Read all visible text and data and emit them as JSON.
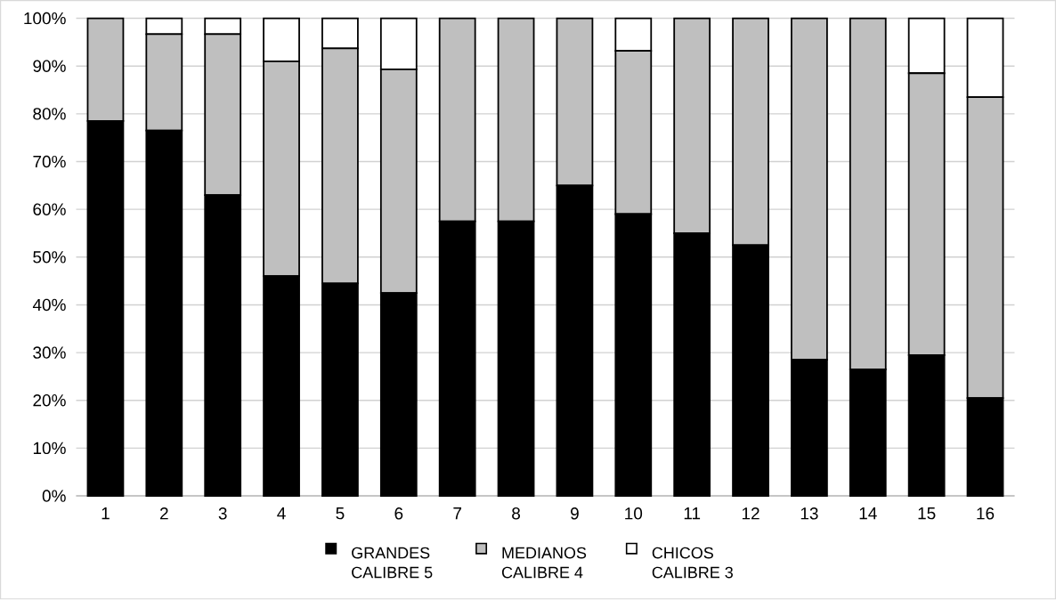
{
  "chart_data": {
    "type": "bar",
    "stacked": true,
    "categories": [
      "1",
      "2",
      "3",
      "4",
      "5",
      "6",
      "7",
      "8",
      "9",
      "10",
      "11",
      "12",
      "13",
      "14",
      "15",
      "16"
    ],
    "series": [
      {
        "name": "GRANDES CALIBRE 5",
        "color": "#000000",
        "values": [
          78.5,
          76.5,
          63,
          46,
          44.5,
          42.5,
          57.5,
          57.5,
          65,
          59,
          55,
          52.5,
          28.5,
          26.5,
          29.5,
          20.5
        ]
      },
      {
        "name": "MEDIANOS CALIBRE 4",
        "color": "#bfbfbf",
        "values": [
          21.5,
          20.2,
          33.7,
          45,
          49.2,
          46.8,
          42.5,
          42.5,
          35,
          34.2,
          45,
          47.5,
          71.5,
          73.5,
          59,
          63
        ]
      },
      {
        "name": "CHICOS CALIBRE 3",
        "color": "#ffffff",
        "values": [
          0,
          3.3,
          3.3,
          9,
          6.3,
          10.7,
          0,
          0,
          0,
          6.8,
          0,
          0,
          0,
          0,
          11.5,
          16.5
        ]
      }
    ],
    "ylim": [
      0,
      100
    ],
    "yticks": [
      {
        "value": 0,
        "label": "0%"
      },
      {
        "value": 10,
        "label": "10%"
      },
      {
        "value": 20,
        "label": "20%"
      },
      {
        "value": 30,
        "label": "30%"
      },
      {
        "value": 40,
        "label": "40%"
      },
      {
        "value": 50,
        "label": "50%"
      },
      {
        "value": 60,
        "label": "60%"
      },
      {
        "value": 70,
        "label": "70%"
      },
      {
        "value": 80,
        "label": "80%"
      },
      {
        "value": 90,
        "label": "90%"
      },
      {
        "value": 100,
        "label": "100%"
      }
    ],
    "grid": "y",
    "legend": "bottom"
  }
}
